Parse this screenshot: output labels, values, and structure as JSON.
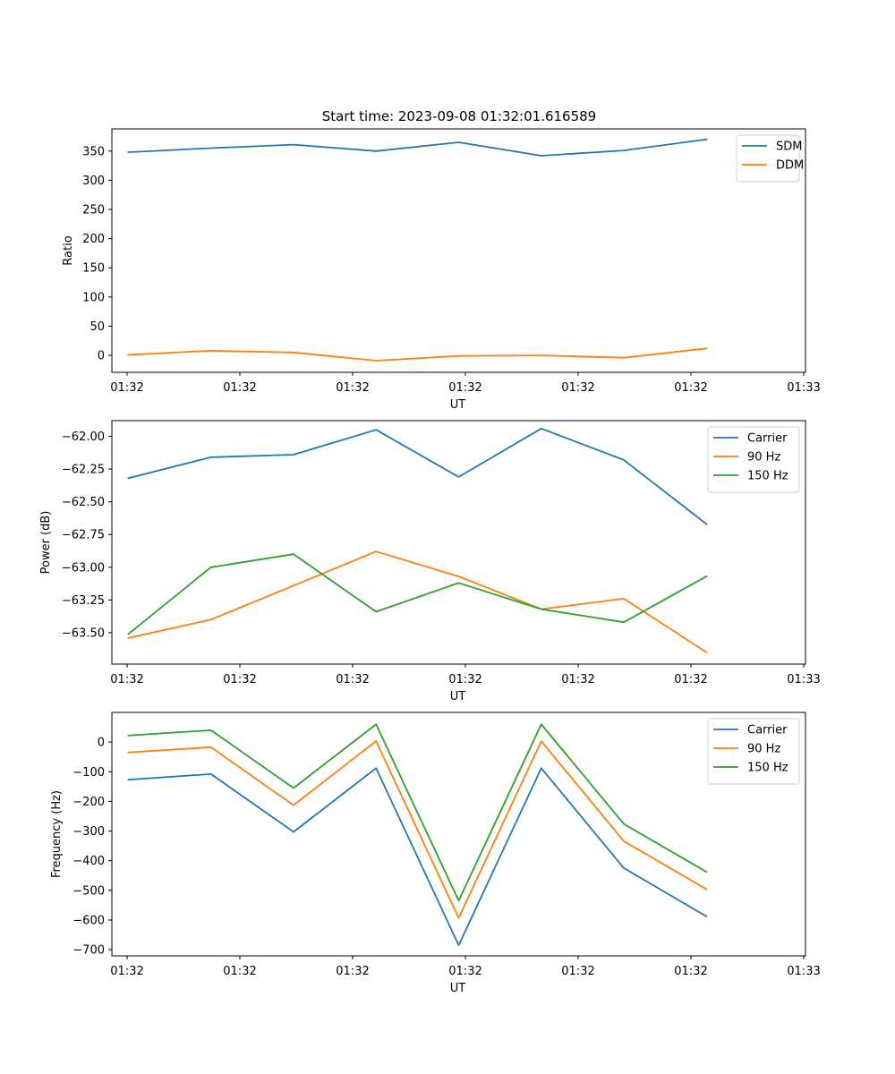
{
  "figure_title": "Start time: 2023-09-08 01:32:01.616589",
  "colors": {
    "blue": "#1f77b4",
    "orange": "#ff7f0e",
    "green": "#2ca02c"
  },
  "chart_data": [
    {
      "type": "line",
      "title": "Start time: 2023-09-08 01:32:01.616589",
      "xlabel": "UT",
      "ylabel": "Ratio",
      "x": [
        1,
        2,
        3,
        4,
        5,
        6,
        7,
        8
      ],
      "xlim": [
        0.8,
        9.2
      ],
      "x_ticks": [
        {
          "x": 0.8,
          "label": "01:32"
        },
        {
          "x": 2.3,
          "label": "01:32"
        },
        {
          "x": 3.8,
          "label": "01:32"
        },
        {
          "x": 5.3,
          "label": "01:32"
        },
        {
          "x": 6.8,
          "label": "01:32"
        },
        {
          "x": 8.3,
          "label": "01:32"
        },
        {
          "x": 9.8,
          "label": "01:33"
        }
      ],
      "ylim": [
        -29,
        388
      ],
      "y_ticks": [
        {
          "value": 0,
          "label": "0"
        },
        {
          "value": 50,
          "label": "50"
        },
        {
          "value": 100,
          "label": "100"
        },
        {
          "value": 150,
          "label": "150"
        },
        {
          "value": 200,
          "label": "200"
        },
        {
          "value": 250,
          "label": "250"
        },
        {
          "value": 300,
          "label": "300"
        },
        {
          "value": 350,
          "label": "350"
        }
      ],
      "legend_position": "upper-right",
      "series": [
        {
          "name": "SDM",
          "color": "#1f77b4",
          "values": [
            348,
            355,
            361,
            350,
            365,
            342,
            351,
            370
          ]
        },
        {
          "name": "DDM",
          "color": "#ff7f0e",
          "values": [
            1,
            8,
            5,
            -9,
            -1,
            0,
            -4,
            12
          ]
        }
      ]
    },
    {
      "type": "line",
      "title": "",
      "xlabel": "UT",
      "ylabel": "Power (dB)",
      "x": [
        1,
        2,
        3,
        4,
        5,
        6,
        7,
        8
      ],
      "xlim": [
        0.8,
        9.2
      ],
      "x_ticks": [
        {
          "x": 0.8,
          "label": "01:32"
        },
        {
          "x": 2.3,
          "label": "01:32"
        },
        {
          "x": 3.8,
          "label": "01:32"
        },
        {
          "x": 5.3,
          "label": "01:32"
        },
        {
          "x": 6.8,
          "label": "01:32"
        },
        {
          "x": 8.3,
          "label": "01:32"
        },
        {
          "x": 9.8,
          "label": "01:33"
        }
      ],
      "ylim": [
        -63.74,
        -61.88
      ],
      "y_ticks": [
        {
          "value": -63.5,
          "label": "−63.50"
        },
        {
          "value": -63.25,
          "label": "−63.25"
        },
        {
          "value": -63.0,
          "label": "−63.00"
        },
        {
          "value": -62.75,
          "label": "−62.75"
        },
        {
          "value": -62.5,
          "label": "−62.50"
        },
        {
          "value": -62.25,
          "label": "−62.25"
        },
        {
          "value": -62.0,
          "label": "−62.00"
        }
      ],
      "legend_position": "upper-right",
      "series": [
        {
          "name": "Carrier",
          "color": "#1f77b4",
          "values": [
            -62.32,
            -62.16,
            -62.14,
            -61.95,
            -62.31,
            -61.94,
            -62.18,
            -62.67
          ]
        },
        {
          "name": "90 Hz",
          "color": "#ff7f0e",
          "values": [
            -63.54,
            -63.4,
            -63.14,
            -62.88,
            -63.07,
            -63.32,
            -63.24,
            -63.65
          ]
        },
        {
          "name": "150 Hz",
          "color": "#2ca02c",
          "values": [
            -63.51,
            -63.0,
            -62.9,
            -63.34,
            -63.12,
            -63.32,
            -63.42,
            -63.07
          ]
        }
      ]
    },
    {
      "type": "line",
      "title": "",
      "xlabel": "UT",
      "ylabel": "Frequency (Hz)",
      "x": [
        1,
        2,
        3,
        4,
        5,
        6,
        7,
        8
      ],
      "xlim": [
        0.8,
        9.2
      ],
      "x_ticks": [
        {
          "x": 0.8,
          "label": "01:32"
        },
        {
          "x": 2.3,
          "label": "01:32"
        },
        {
          "x": 3.8,
          "label": "01:32"
        },
        {
          "x": 5.3,
          "label": "01:32"
        },
        {
          "x": 6.8,
          "label": "01:32"
        },
        {
          "x": 8.3,
          "label": "01:32"
        },
        {
          "x": 9.8,
          "label": "01:33"
        }
      ],
      "ylim": [
        -721,
        100
      ],
      "y_ticks": [
        {
          "value": -700,
          "label": "−700"
        },
        {
          "value": -600,
          "label": "−600"
        },
        {
          "value": -500,
          "label": "−500"
        },
        {
          "value": -400,
          "label": "−400"
        },
        {
          "value": -300,
          "label": "−300"
        },
        {
          "value": -200,
          "label": "−200"
        },
        {
          "value": -100,
          "label": "−100"
        },
        {
          "value": 0,
          "label": "0"
        }
      ],
      "legend_position": "upper-right",
      "series": [
        {
          "name": "Carrier",
          "color": "#1f77b4",
          "values": [
            -127,
            -108,
            -303,
            -88,
            -685,
            -88,
            -425,
            -588
          ]
        },
        {
          "name": "90 Hz",
          "color": "#ff7f0e",
          "values": [
            -35,
            -17,
            -213,
            3,
            -593,
            3,
            -334,
            -496
          ]
        },
        {
          "name": "150 Hz",
          "color": "#2ca02c",
          "values": [
            22,
            40,
            -155,
            60,
            -535,
            60,
            -276,
            -438
          ]
        }
      ]
    }
  ]
}
